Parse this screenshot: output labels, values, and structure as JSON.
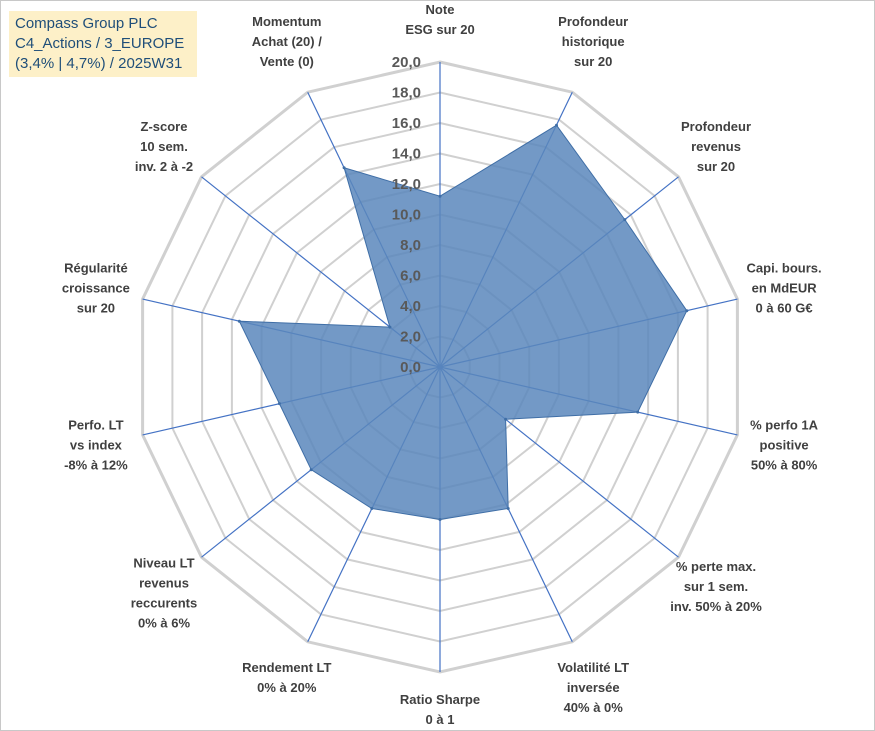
{
  "info_box": {
    "line1": "Compass Group PLC",
    "line2": "C4_Actions / 3_EUROPE",
    "line3": "(3,4% | 4,7%) / 2025W31"
  },
  "colors": {
    "fill": "#5b87bc",
    "stroke": "#3f6ea6",
    "grid": "#d0d0d0",
    "spoke": "#4472c4",
    "info_bg": "#fdf0c8",
    "info_text": "#1f4e79"
  },
  "chart_data": {
    "type": "radar",
    "title": "",
    "rmin": 0,
    "rmax": 20,
    "grid_step": 2,
    "ticks": [
      "0,0",
      "2,0",
      "4,0",
      "6,0",
      "8,0",
      "10,0",
      "12,0",
      "14,0",
      "16,0",
      "18,0",
      "20,0"
    ],
    "axes": [
      {
        "label": [
          "Note",
          "ESG sur 20"
        ],
        "value": 11.2
      },
      {
        "label": [
          "Profondeur",
          "historique",
          "sur 20"
        ],
        "value": 17.6
      },
      {
        "label": [
          "Profondeur",
          "revenus",
          "sur 20"
        ],
        "value": 15.5
      },
      {
        "label": [
          "Capi. bours.",
          "en MdEUR",
          "0 à 60 G€"
        ],
        "value": 16.6
      },
      {
        "label": [
          "% perfo 1A",
          "positive",
          "50% à 80%"
        ],
        "value": 13.3
      },
      {
        "label": [
          "% perte max.",
          "sur 1 sem.",
          "inv. 50% à 20%"
        ],
        "value": 5.5
      },
      {
        "label": [
          "Volatilité LT",
          "inversée",
          "40% à 0%"
        ],
        "value": 10.3
      },
      {
        "label": [
          "Ratio Sharpe",
          "0 à 1"
        ],
        "value": 10.0
      },
      {
        "label": [
          "Rendement LT",
          "0% à 20%"
        ],
        "value": 10.3
      },
      {
        "label": [
          "Niveau LT",
          "revenus",
          "reccurents",
          "0% à 6%"
        ],
        "value": 10.8
      },
      {
        "label": [
          "Perfo. LT",
          "vs index",
          "-8% à 12%"
        ],
        "value": 10.8
      },
      {
        "label": [
          "Régularité",
          "croissance",
          "sur 20"
        ],
        "value": 13.5
      },
      {
        "label": [
          "Z-score",
          "10 sem.",
          "inv. 2 à -2"
        ],
        "value": 4.2
      },
      {
        "label": [
          "Momentum",
          "Achat (20) /",
          "Vente (0)"
        ],
        "value": 14.5
      }
    ]
  }
}
